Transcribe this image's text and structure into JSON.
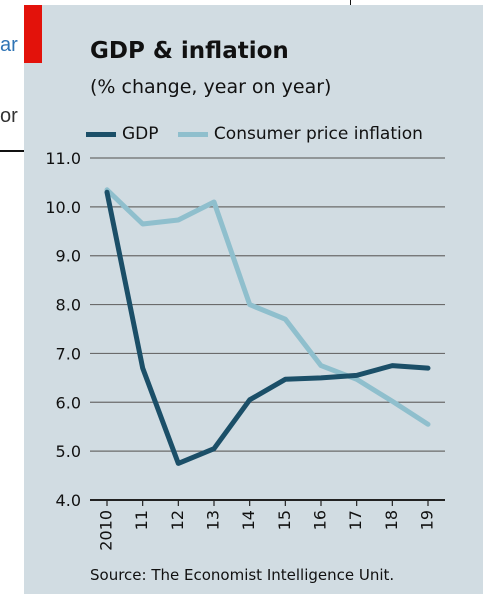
{
  "background_fragments": {
    "top": "ar",
    "middle": "or"
  },
  "colors": {
    "background": "#d1dce2",
    "accent_red": "#e3120b",
    "gdp": "#1b4f68",
    "inflation": "#8fbfcd",
    "grid": "#6b6b6b"
  },
  "chart_data": {
    "type": "line",
    "title": "GDP & inflation",
    "subtitle": "(% change, year on year)",
    "source": "Source: The Economist Intelligence Unit.",
    "xlabel": "",
    "ylabel": "",
    "x": [
      "2010",
      "11",
      "12",
      "13",
      "14",
      "15",
      "16",
      "17",
      "18",
      "19"
    ],
    "ylim": [
      4.0,
      11.0
    ],
    "yticks": [
      "11.0",
      "10.0",
      "9.0",
      "8.0",
      "7.0",
      "6.0",
      "5.0",
      "4.0"
    ],
    "grid": true,
    "legend_position": "top-left",
    "series": [
      {
        "name": "GDP",
        "color": "#1b4f68",
        "values": [
          10.3,
          6.7,
          4.75,
          5.05,
          6.05,
          6.47,
          6.5,
          6.55,
          6.75,
          6.7
        ]
      },
      {
        "name": "Consumer price inflation",
        "color": "#8fbfcd",
        "values": [
          10.35,
          9.65,
          9.73,
          10.1,
          8.0,
          7.7,
          6.75,
          6.47,
          6.02,
          5.55
        ]
      }
    ]
  }
}
